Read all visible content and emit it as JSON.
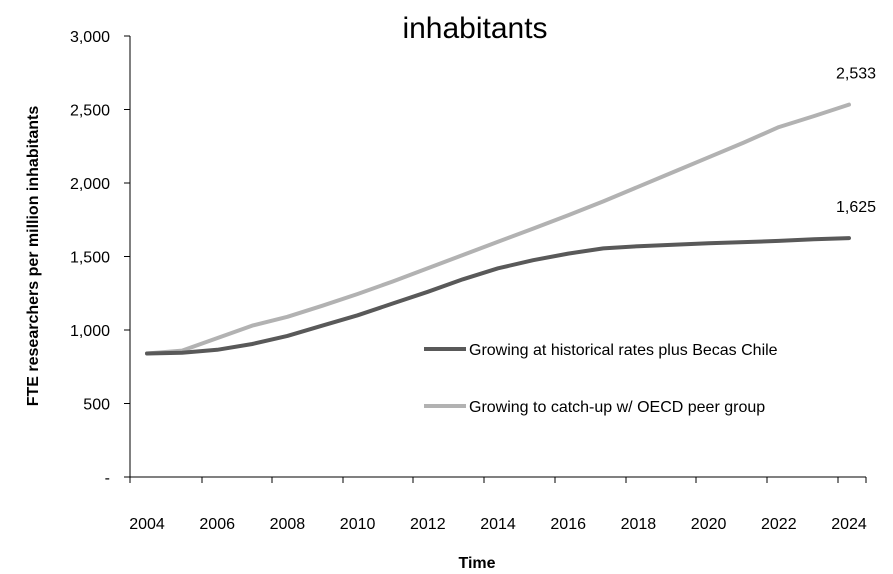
{
  "chart_data": {
    "type": "line",
    "title": "inhabitants",
    "xlabel": "Time",
    "ylabel": "FTE researchers per million inhabitants",
    "x": [
      2004,
      2005,
      2006,
      2007,
      2008,
      2009,
      2010,
      2011,
      2012,
      2013,
      2014,
      2015,
      2016,
      2017,
      2018,
      2019,
      2020,
      2021,
      2022,
      2023,
      2024
    ],
    "xticks": [
      "2004",
      "2006",
      "2008",
      "2010",
      "2012",
      "2014",
      "2016",
      "2018",
      "2020",
      "2022",
      "2024"
    ],
    "yticks": [
      "-",
      "500",
      "1,000",
      "1,500",
      "2,000",
      "2,500",
      "3,000"
    ],
    "ylim": [
      0,
      3000
    ],
    "xlim": [
      2004,
      2024
    ],
    "grid": false,
    "legend_position": "center-right",
    "series": [
      {
        "name": "Growing at historical rates plus Becas Chile",
        "color": "#595959",
        "values": [
          840,
          845,
          865,
          905,
          960,
          1030,
          1100,
          1180,
          1260,
          1345,
          1420,
          1475,
          1520,
          1555,
          1570,
          1580,
          1590,
          1598,
          1606,
          1617,
          1625
        ],
        "end_label": "1,625"
      },
      {
        "name": "Growing to catch-up w/ OECD peer group",
        "color": "#b2b2b2",
        "values": [
          840,
          860,
          945,
          1030,
          1090,
          1165,
          1245,
          1330,
          1420,
          1510,
          1600,
          1690,
          1780,
          1875,
          1975,
          2075,
          2175,
          2275,
          2380,
          2455,
          2533
        ],
        "end_label": "2,533"
      }
    ]
  }
}
